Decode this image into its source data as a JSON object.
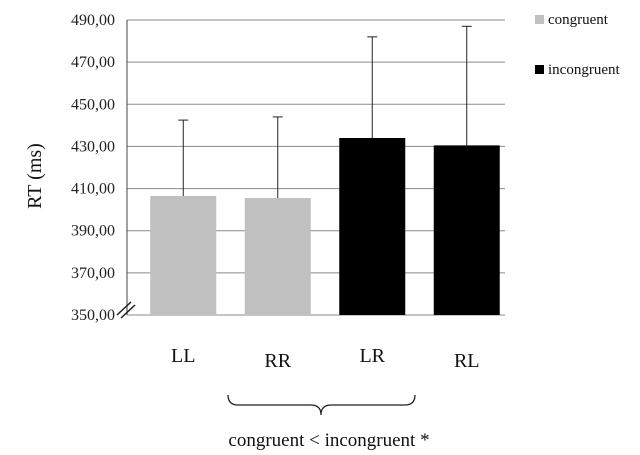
{
  "chart_data": {
    "type": "bar",
    "title": "",
    "xlabel": "",
    "ylabel": "RT (ms)",
    "categories": [
      "LL",
      "RR",
      "LR",
      "RL"
    ],
    "values": [
      406.5,
      405.5,
      434.0,
      430.5
    ],
    "error_upper": [
      442.5,
      444.0,
      482.0,
      487.0
    ],
    "bar_series": [
      "congruent",
      "congruent",
      "incongruent",
      "incongruent"
    ],
    "ylim": [
      350,
      490
    ],
    "yticks": [
      "350,00",
      "370,00",
      "390,00",
      "410,00",
      "430,00",
      "450,00",
      "470,00",
      "490,00"
    ],
    "grid": true,
    "axis_break": true,
    "legend": {
      "placement": "top-right",
      "entries": [
        {
          "name": "congruent",
          "color": "#c0c0c0"
        },
        {
          "name": "incongruent",
          "color": "#000000"
        }
      ]
    },
    "annotation": "congruent < incongruent *"
  }
}
